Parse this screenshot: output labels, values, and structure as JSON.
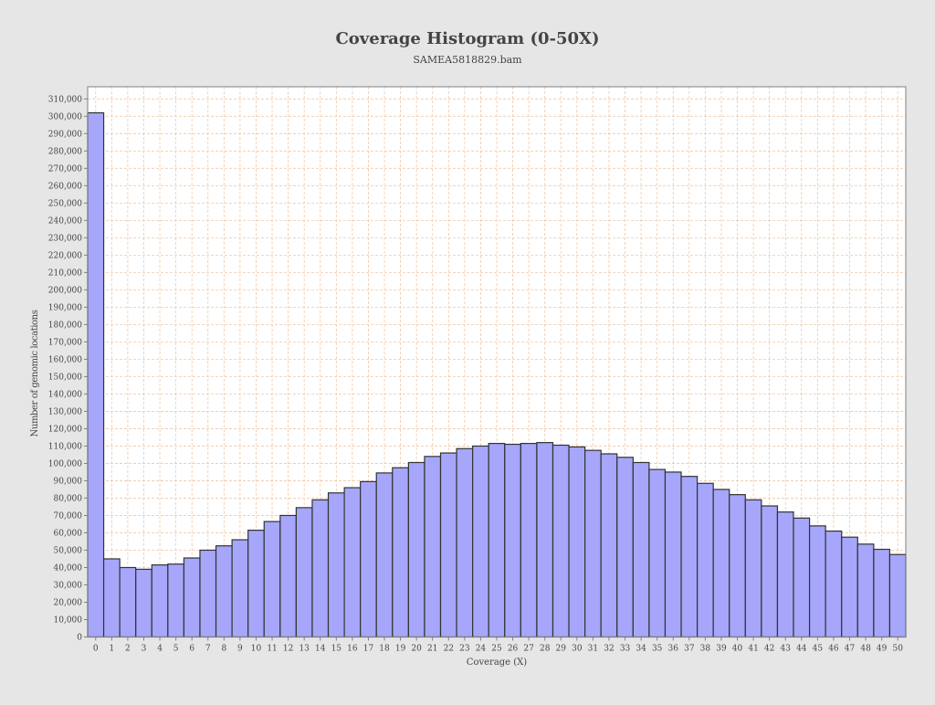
{
  "chart_data": {
    "type": "bar",
    "title": "Coverage Histogram (0-50X)",
    "subtitle": "SAMEA5818829.bam",
    "xlabel": "Coverage (X)",
    "ylabel": "Number of genomic locations",
    "ylim": [
      0,
      317000
    ],
    "yticks": [
      0,
      10000,
      20000,
      30000,
      40000,
      50000,
      60000,
      70000,
      80000,
      90000,
      100000,
      110000,
      120000,
      130000,
      140000,
      150000,
      160000,
      170000,
      180000,
      190000,
      200000,
      210000,
      220000,
      230000,
      240000,
      250000,
      260000,
      270000,
      280000,
      290000,
      300000,
      310000
    ],
    "grid": true,
    "legend": "none",
    "categories": [
      "0",
      "1",
      "2",
      "3",
      "4",
      "5",
      "6",
      "7",
      "8",
      "9",
      "10",
      "11",
      "12",
      "13",
      "14",
      "15",
      "16",
      "17",
      "18",
      "19",
      "20",
      "21",
      "22",
      "23",
      "24",
      "25",
      "26",
      "27",
      "28",
      "29",
      "30",
      "31",
      "32",
      "33",
      "34",
      "35",
      "36",
      "37",
      "38",
      "39",
      "40",
      "41",
      "42",
      "43",
      "44",
      "45",
      "46",
      "47",
      "48",
      "49",
      "50"
    ],
    "values": [
      302000,
      45000,
      40000,
      39000,
      41500,
      42000,
      45500,
      50000,
      52500,
      56000,
      61500,
      66500,
      70000,
      74500,
      79000,
      83000,
      86000,
      89500,
      94500,
      97500,
      100500,
      104000,
      106000,
      108500,
      110000,
      111500,
      111000,
      111500,
      112000,
      110500,
      109500,
      107500,
      105500,
      103500,
      100500,
      96500,
      95000,
      92500,
      88500,
      85000,
      82000,
      79000,
      75500,
      72000,
      68500,
      64000,
      61000,
      57500,
      53500,
      50500,
      47500
    ],
    "colors": {
      "bar_fill": "#a6a6fa",
      "bar_stroke": "#333333",
      "grid": "#f0c8a8",
      "plot_bg": "#ffffff",
      "page_bg": "#e6e6e6"
    }
  }
}
